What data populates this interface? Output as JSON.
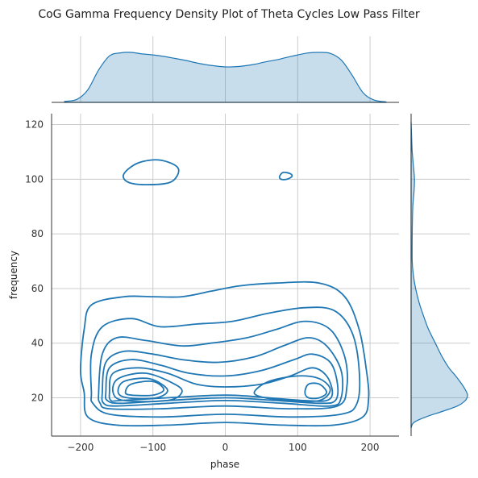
{
  "chart_data": {
    "type": "kde-joint",
    "title": "CoG Gamma Frequency Density Plot of Theta Cycles Low Pass Filter",
    "xlabel": "phase",
    "ylabel": "frequency",
    "xlim": [
      -240,
      240
    ],
    "ylim": [
      6,
      124
    ],
    "xticks": [
      -200,
      -100,
      0,
      100,
      200
    ],
    "yticks": [
      20,
      40,
      60,
      80,
      100,
      120
    ],
    "grid": true,
    "color": "#1f77b4",
    "marginal_x": {
      "x": [
        -222,
        -205,
        -190,
        -175,
        -160,
        -145,
        -130,
        -115,
        -100,
        -85,
        -70,
        -55,
        -40,
        -20,
        0,
        20,
        40,
        55,
        70,
        85,
        100,
        115,
        130,
        145,
        160,
        175,
        190,
        205,
        222
      ],
      "density": [
        0.02,
        0.06,
        0.25,
        0.65,
        0.93,
        0.99,
        1.0,
        0.97,
        0.95,
        0.92,
        0.88,
        0.84,
        0.79,
        0.74,
        0.71,
        0.72,
        0.76,
        0.81,
        0.85,
        0.9,
        0.95,
        0.99,
        1.0,
        0.98,
        0.85,
        0.55,
        0.2,
        0.05,
        0.01
      ]
    },
    "marginal_y": {
      "y": [
        9,
        11,
        13,
        15,
        17,
        19,
        21,
        23,
        25,
        28,
        31,
        35,
        40,
        45,
        50,
        55,
        60,
        65,
        70,
        80,
        90,
        95,
        100,
        105,
        110,
        115,
        121
      ],
      "density": [
        0.0,
        0.05,
        0.26,
        0.55,
        0.82,
        0.96,
        1.0,
        0.96,
        0.9,
        0.79,
        0.67,
        0.55,
        0.43,
        0.31,
        0.22,
        0.14,
        0.08,
        0.04,
        0.02,
        0.02,
        0.03,
        0.05,
        0.06,
        0.04,
        0.02,
        0.01,
        0.0
      ]
    },
    "contours": [
      {
        "points": [
          [
            -195,
            22
          ],
          [
            -200,
            30
          ],
          [
            -195,
            45
          ],
          [
            -185,
            54
          ],
          [
            -140,
            57
          ],
          [
            -100,
            57
          ],
          [
            -60,
            57
          ],
          [
            -20,
            59
          ],
          [
            20,
            61
          ],
          [
            70,
            62
          ],
          [
            130,
            62
          ],
          [
            165,
            57
          ],
          [
            185,
            45
          ],
          [
            195,
            30
          ],
          [
            198,
            20
          ],
          [
            190,
            13
          ],
          [
            150,
            10
          ],
          [
            80,
            10
          ],
          [
            0,
            11
          ],
          [
            -80,
            10
          ],
          [
            -150,
            10
          ],
          [
            -190,
            13
          ]
        ]
      },
      {
        "points": [
          [
            -185,
            22
          ],
          [
            -185,
            36
          ],
          [
            -170,
            46
          ],
          [
            -130,
            49
          ],
          [
            -90,
            46
          ],
          [
            -40,
            47
          ],
          [
            10,
            48
          ],
          [
            60,
            51
          ],
          [
            110,
            53
          ],
          [
            150,
            52
          ],
          [
            175,
            44
          ],
          [
            185,
            30
          ],
          [
            182,
            18
          ],
          [
            160,
            14
          ],
          [
            90,
            13
          ],
          [
            0,
            14
          ],
          [
            -90,
            13
          ],
          [
            -160,
            14
          ],
          [
            -183,
            18
          ]
        ]
      },
      {
        "points": [
          [
            -175,
            22
          ],
          [
            -170,
            36
          ],
          [
            -150,
            42
          ],
          [
            -110,
            41
          ],
          [
            -60,
            39
          ],
          [
            -20,
            40
          ],
          [
            30,
            42
          ],
          [
            70,
            45
          ],
          [
            110,
            48
          ],
          [
            145,
            45
          ],
          [
            165,
            35
          ],
          [
            168,
            24
          ],
          [
            155,
            17
          ],
          [
            90,
            16
          ],
          [
            0,
            17
          ],
          [
            -90,
            16
          ],
          [
            -160,
            16
          ],
          [
            -173,
            18
          ]
        ]
      },
      {
        "points": [
          [
            -170,
            22
          ],
          [
            -165,
            33
          ],
          [
            -140,
            37
          ],
          [
            -100,
            36
          ],
          [
            -60,
            34
          ],
          [
            -10,
            33
          ],
          [
            40,
            35
          ],
          [
            80,
            39
          ],
          [
            115,
            42
          ],
          [
            140,
            39
          ],
          [
            160,
            30
          ],
          [
            160,
            20
          ],
          [
            145,
            17
          ],
          [
            80,
            18
          ],
          [
            0,
            19
          ],
          [
            -80,
            18
          ],
          [
            -150,
            17
          ],
          [
            -168,
            18
          ]
        ]
      },
      {
        "points": [
          [
            -165,
            22
          ],
          [
            -160,
            31
          ],
          [
            -130,
            34
          ],
          [
            -90,
            32
          ],
          [
            -50,
            29
          ],
          [
            0,
            28
          ],
          [
            50,
            30
          ],
          [
            95,
            34
          ],
          [
            120,
            36
          ],
          [
            145,
            33
          ],
          [
            155,
            25
          ],
          [
            152,
            19
          ],
          [
            130,
            18
          ],
          [
            70,
            19
          ],
          [
            0,
            20
          ],
          [
            -80,
            19
          ],
          [
            -145,
            18
          ],
          [
            -163,
            19
          ]
        ]
      },
      {
        "points": [
          [
            -160,
            22
          ],
          [
            -155,
            29
          ],
          [
            -120,
            31
          ],
          [
            -80,
            29
          ],
          [
            -40,
            25
          ],
          [
            0,
            24
          ],
          [
            50,
            25
          ],
          [
            90,
            28
          ],
          [
            120,
            31
          ],
          [
            140,
            28
          ],
          [
            148,
            22
          ],
          [
            140,
            19
          ],
          [
            110,
            19
          ],
          [
            60,
            20
          ],
          [
            0,
            21
          ],
          [
            -80,
            20
          ],
          [
            -145,
            19
          ],
          [
            -158,
            19
          ]
        ]
      },
      {
        "points": [
          [
            -155,
            22
          ],
          [
            -148,
            27
          ],
          [
            -110,
            29
          ],
          [
            -70,
            25
          ],
          [
            -60,
            22
          ],
          [
            -80,
            19
          ],
          [
            -140,
            19
          ]
        ]
      },
      {
        "points": [
          [
            40,
            22
          ],
          [
            60,
            26
          ],
          [
            100,
            28
          ],
          [
            130,
            27
          ],
          [
            145,
            23
          ],
          [
            130,
            19
          ],
          [
            90,
            19
          ],
          [
            55,
            20
          ]
        ]
      },
      {
        "points": [
          [
            -148,
            22
          ],
          [
            -140,
            26
          ],
          [
            -105,
            27
          ],
          [
            -80,
            23
          ],
          [
            -95,
            20
          ],
          [
            -135,
            20
          ]
        ]
      },
      {
        "points": [
          [
            110,
            22
          ],
          [
            115,
            25
          ],
          [
            130,
            25
          ],
          [
            140,
            22
          ],
          [
            130,
            20
          ],
          [
            115,
            20
          ]
        ]
      },
      {
        "points": [
          [
            -138,
            22
          ],
          [
            -130,
            25
          ],
          [
            -100,
            26
          ],
          [
            -85,
            23
          ],
          [
            -100,
            21
          ],
          [
            -130,
            21
          ]
        ]
      },
      {
        "points": [
          [
            -140,
            102
          ],
          [
            -120,
            106
          ],
          [
            -90,
            107
          ],
          [
            -65,
            104
          ],
          [
            -75,
            99
          ],
          [
            -110,
            98
          ],
          [
            -135,
            99
          ]
        ]
      },
      {
        "points": [
          [
            75,
            101
          ],
          [
            80,
            102.5
          ],
          [
            90,
            102
          ],
          [
            92,
            101
          ],
          [
            85,
            100
          ],
          [
            77,
            100
          ]
        ]
      }
    ]
  }
}
